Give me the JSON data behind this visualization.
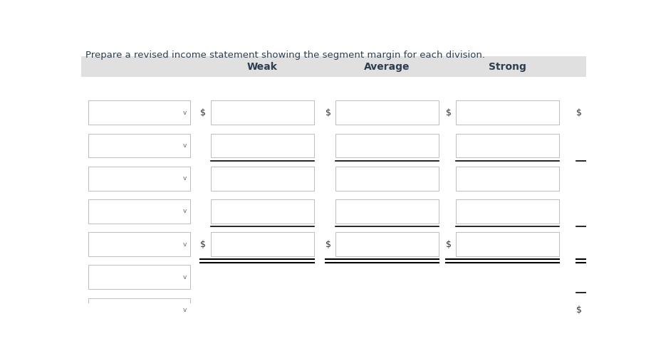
{
  "title": "Prepare a revised income statement showing the segment margin for each division.",
  "header_bg": "#e0e0e0",
  "columns": [
    "Weak",
    "Average",
    "Strong"
  ],
  "bg_color": "#ffffff",
  "header_text_color": "#2c3e50",
  "text_color": "#333333",
  "box_fill": "#ffffff",
  "box_edge": "#bbbbbb",
  "header_fontsize": 10,
  "title_fontsize": 9.5
}
